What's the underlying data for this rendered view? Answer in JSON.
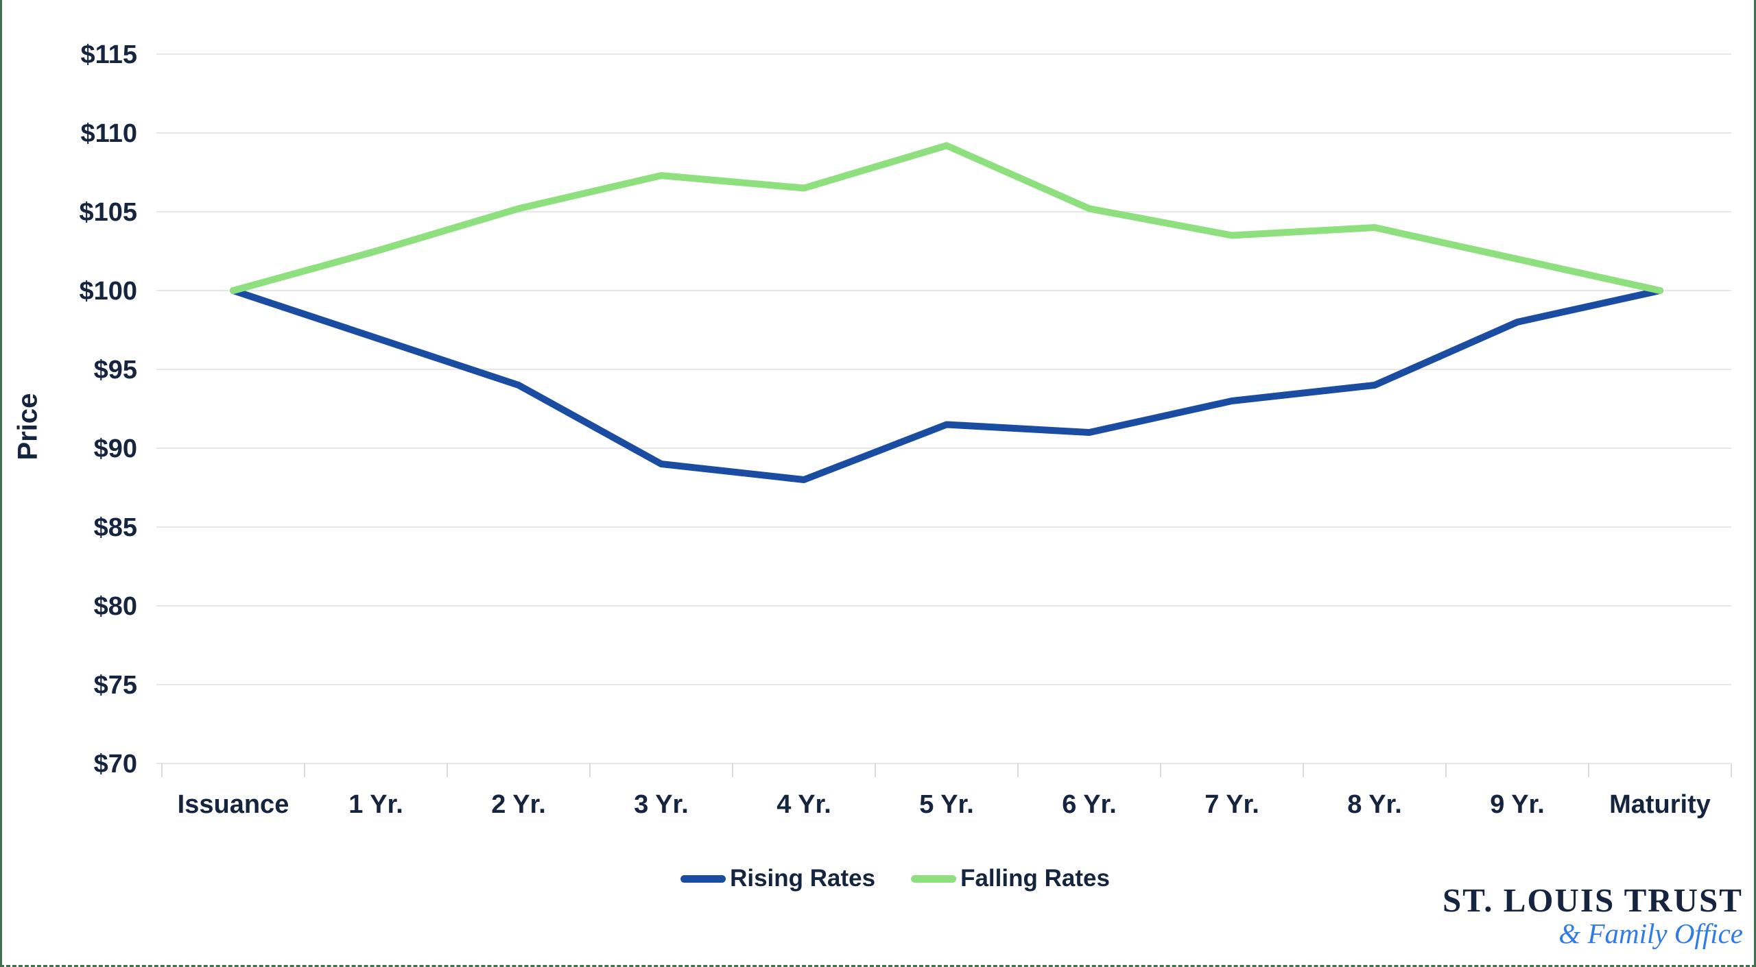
{
  "chart_data": {
    "type": "line",
    "title": "",
    "categories": [
      "Issuance",
      "1 Yr.",
      "2 Yr.",
      "3 Yr.",
      "4 Yr.",
      "5 Yr.",
      "6 Yr.",
      "7 Yr.",
      "8 Yr.",
      "9 Yr.",
      "Maturity"
    ],
    "series": [
      {
        "name": "Rising Rates",
        "color": "#1A4DA1",
        "values": [
          100,
          97,
          94,
          89,
          88,
          91.5,
          91,
          93,
          94,
          98,
          100
        ]
      },
      {
        "name": "Falling Rates",
        "color": "#8EE07E",
        "values": [
          100,
          102.5,
          105.2,
          107.3,
          106.5,
          109.2,
          105.2,
          103.5,
          104,
          102,
          100
        ]
      }
    ],
    "xlabel": "",
    "ylabel": "Price",
    "ylim": [
      70,
      115
    ],
    "ytick_step": 5,
    "y_tick_labels": [
      "$70",
      "$75",
      "$80",
      "$85",
      "$90",
      "$95",
      "$100",
      "$105",
      "$110",
      "$115"
    ],
    "grid": "horizontal",
    "legend_position": "bottom-center"
  },
  "branding": {
    "line1": "ST. LOUIS TRUST",
    "line2": "& Family Office"
  },
  "colors": {
    "text_navy": "#15243F",
    "rising_line": "#1A4DA1",
    "falling_line": "#8EE07E",
    "gridline": "#E7E7EA",
    "axis_tick": "#DCDCE0",
    "frame_border": "#41704F",
    "logo_blue": "#2F7BE8"
  }
}
